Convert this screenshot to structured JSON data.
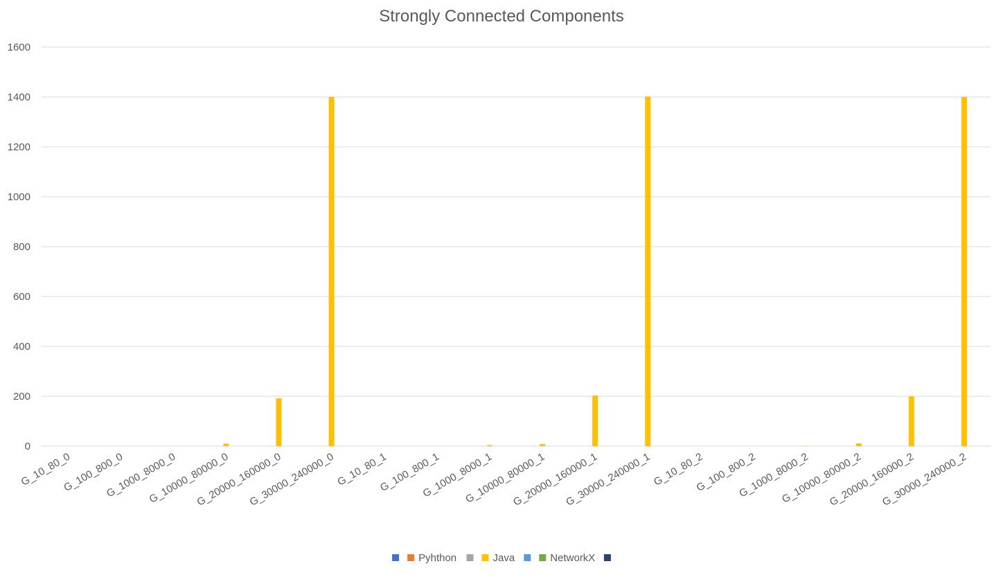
{
  "chart_data": {
    "type": "bar",
    "title": "Strongly Connected Components",
    "xlabel": "",
    "ylabel": "",
    "ylim": [
      0,
      1600
    ],
    "yticks": [
      0,
      200,
      400,
      600,
      800,
      1000,
      1200,
      1400,
      1600
    ],
    "grid": true,
    "legend_position": "bottom",
    "categories": [
      "G_10_80_0",
      "G_100_800_0",
      "G_1000_8000_0",
      "G_10000_80000_0",
      "G_20000_160000_0",
      "G_30000_240000_0",
      "G_10_80_1",
      "G_100_800_1",
      "G_1000_8000_1",
      "G_10000_80000_1",
      "G_20000_160000_1",
      "G_30000_240000_1",
      "G_10_80_2",
      "G_100_800_2",
      "G_1000_8000_2",
      "G_10000_80000_2",
      "G_20000_160000_2",
      "G_30000_240000_2"
    ],
    "series": [
      {
        "name": "",
        "color": "#4472C4",
        "values": [
          0,
          0,
          0,
          0,
          0,
          0,
          0,
          0,
          0,
          0,
          0,
          0,
          0,
          0,
          0,
          0,
          0,
          0
        ]
      },
      {
        "name": "Pyhthon",
        "color": "#ED7D31",
        "values": [
          0,
          0,
          0,
          0,
          0,
          0,
          0,
          0,
          0,
          0,
          0,
          0,
          0,
          0,
          0,
          0,
          0,
          0
        ]
      },
      {
        "name": "",
        "color": "#A5A5A5",
        "values": [
          0,
          0,
          0,
          0,
          0,
          0,
          0,
          0,
          0,
          0,
          0,
          0,
          0,
          0,
          0,
          0,
          0,
          0
        ]
      },
      {
        "name": "Java",
        "color": "#FFC000",
        "values": [
          0,
          0,
          0,
          10,
          192,
          1400,
          0,
          0,
          4,
          8,
          203,
          1402,
          0,
          0,
          1,
          11,
          200,
          1400
        ]
      },
      {
        "name": "",
        "color": "#5B9BD5",
        "values": [
          0,
          0,
          0,
          0,
          0,
          0,
          0,
          0,
          0,
          0,
          0,
          0,
          0,
          0,
          0,
          0,
          0,
          0
        ]
      },
      {
        "name": "NetworkX",
        "color": "#70AD47",
        "values": [
          0,
          0,
          0,
          0,
          0,
          0,
          0,
          0,
          0,
          0,
          0,
          0,
          0,
          0,
          0,
          0,
          0,
          0
        ]
      },
      {
        "name": "",
        "color": "#264478",
        "values": [
          0,
          0,
          0,
          0,
          0,
          0,
          0,
          0,
          0,
          0,
          0,
          0,
          0,
          0,
          0,
          0,
          0,
          0
        ]
      }
    ]
  }
}
